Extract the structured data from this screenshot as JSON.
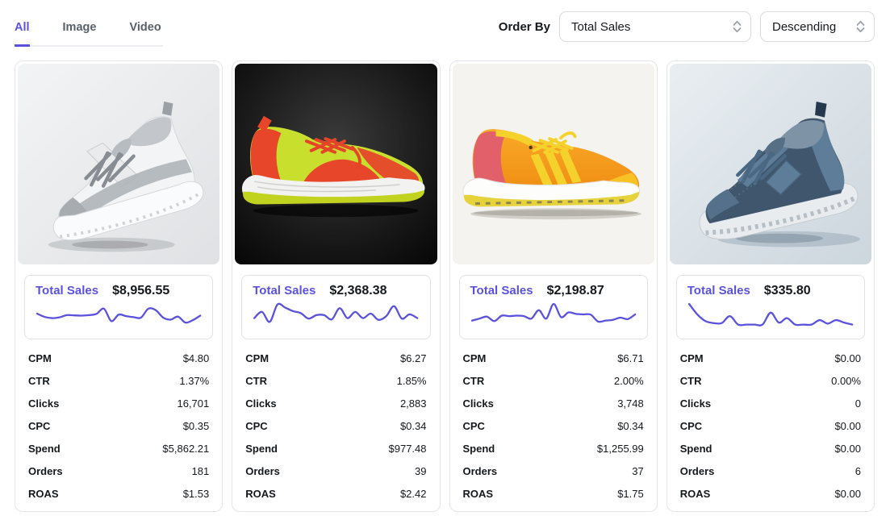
{
  "colors": {
    "accent": "#5a52dc",
    "text": "#15181c",
    "muted": "#586069",
    "border": "#e3e5e9"
  },
  "icons": {
    "select_chevron": "up-down-chevron"
  },
  "tabs": [
    {
      "label": "All",
      "active": true
    },
    {
      "label": "Image",
      "active": false
    },
    {
      "label": "Video",
      "active": false
    }
  ],
  "order_by": {
    "label": "Order By",
    "field": "Total Sales",
    "direction": "Descending"
  },
  "cards": [
    {
      "image": "grey-white-sneaker",
      "total_sales_label": "Total Sales",
      "total_sales": "$8,956.55",
      "sparkline": [
        58,
        45,
        40,
        43,
        52,
        51,
        50,
        52,
        57,
        78,
        28,
        54,
        48,
        44,
        42,
        78,
        72,
        42,
        34,
        46,
        22,
        32,
        50
      ],
      "metrics": [
        {
          "label": "CPM",
          "value": "$4.80"
        },
        {
          "label": "CTR",
          "value": "1.37%"
        },
        {
          "label": "Clicks",
          "value": "16,701"
        },
        {
          "label": "CPC",
          "value": "$0.35"
        },
        {
          "label": "Spend",
          "value": "$5,862.21"
        },
        {
          "label": "Orders",
          "value": "181"
        },
        {
          "label": "ROAS",
          "value": "$1.53"
        }
      ]
    },
    {
      "image": "neon-yellow-red-running-shoe",
      "total_sales_label": "Total Sales",
      "total_sales": "$2,368.38",
      "sparkline": [
        40,
        65,
        25,
        95,
        82,
        68,
        60,
        38,
        52,
        52,
        35,
        80,
        40,
        65,
        40,
        58,
        33,
        48,
        88,
        38,
        55,
        40
      ],
      "metrics": [
        {
          "label": "CPM",
          "value": "$6.27"
        },
        {
          "label": "CTR",
          "value": "1.85%"
        },
        {
          "label": "Clicks",
          "value": "2,883"
        },
        {
          "label": "CPC",
          "value": "$0.34"
        },
        {
          "label": "Spend",
          "value": "$977.48"
        },
        {
          "label": "Orders",
          "value": "39"
        },
        {
          "label": "ROAS",
          "value": "$2.42"
        }
      ]
    },
    {
      "image": "orange-yellow-sneaker",
      "total_sales_label": "Total Sales",
      "total_sales": "$2,198.87",
      "sparkline": [
        30,
        38,
        46,
        28,
        50,
        48,
        50,
        48,
        38,
        72,
        38,
        97,
        44,
        63,
        57,
        55,
        54,
        26,
        30,
        33,
        42,
        36,
        55
      ],
      "metrics": [
        {
          "label": "CPM",
          "value": "$6.71"
        },
        {
          "label": "CTR",
          "value": "2.00%"
        },
        {
          "label": "Clicks",
          "value": "3,748"
        },
        {
          "label": "CPC",
          "value": "$0.34"
        },
        {
          "label": "Spend",
          "value": "$1,255.99"
        },
        {
          "label": "Orders",
          "value": "37"
        },
        {
          "label": "ROAS",
          "value": "$1.75"
        }
      ]
    },
    {
      "image": "blue-grey-knit-sneaker",
      "total_sales_label": "Total Sales",
      "total_sales": "$335.80",
      "sparkline": [
        97,
        55,
        28,
        20,
        20,
        48,
        14,
        14,
        14,
        14,
        62,
        22,
        40,
        14,
        14,
        14,
        32,
        18,
        32,
        22,
        14
      ],
      "metrics": [
        {
          "label": "CPM",
          "value": "$0.00"
        },
        {
          "label": "CTR",
          "value": "0.00%"
        },
        {
          "label": "Clicks",
          "value": "0"
        },
        {
          "label": "CPC",
          "value": "$0.00"
        },
        {
          "label": "Spend",
          "value": "$0.00"
        },
        {
          "label": "Orders",
          "value": "6"
        },
        {
          "label": "ROAS",
          "value": "$0.00"
        }
      ]
    }
  ]
}
